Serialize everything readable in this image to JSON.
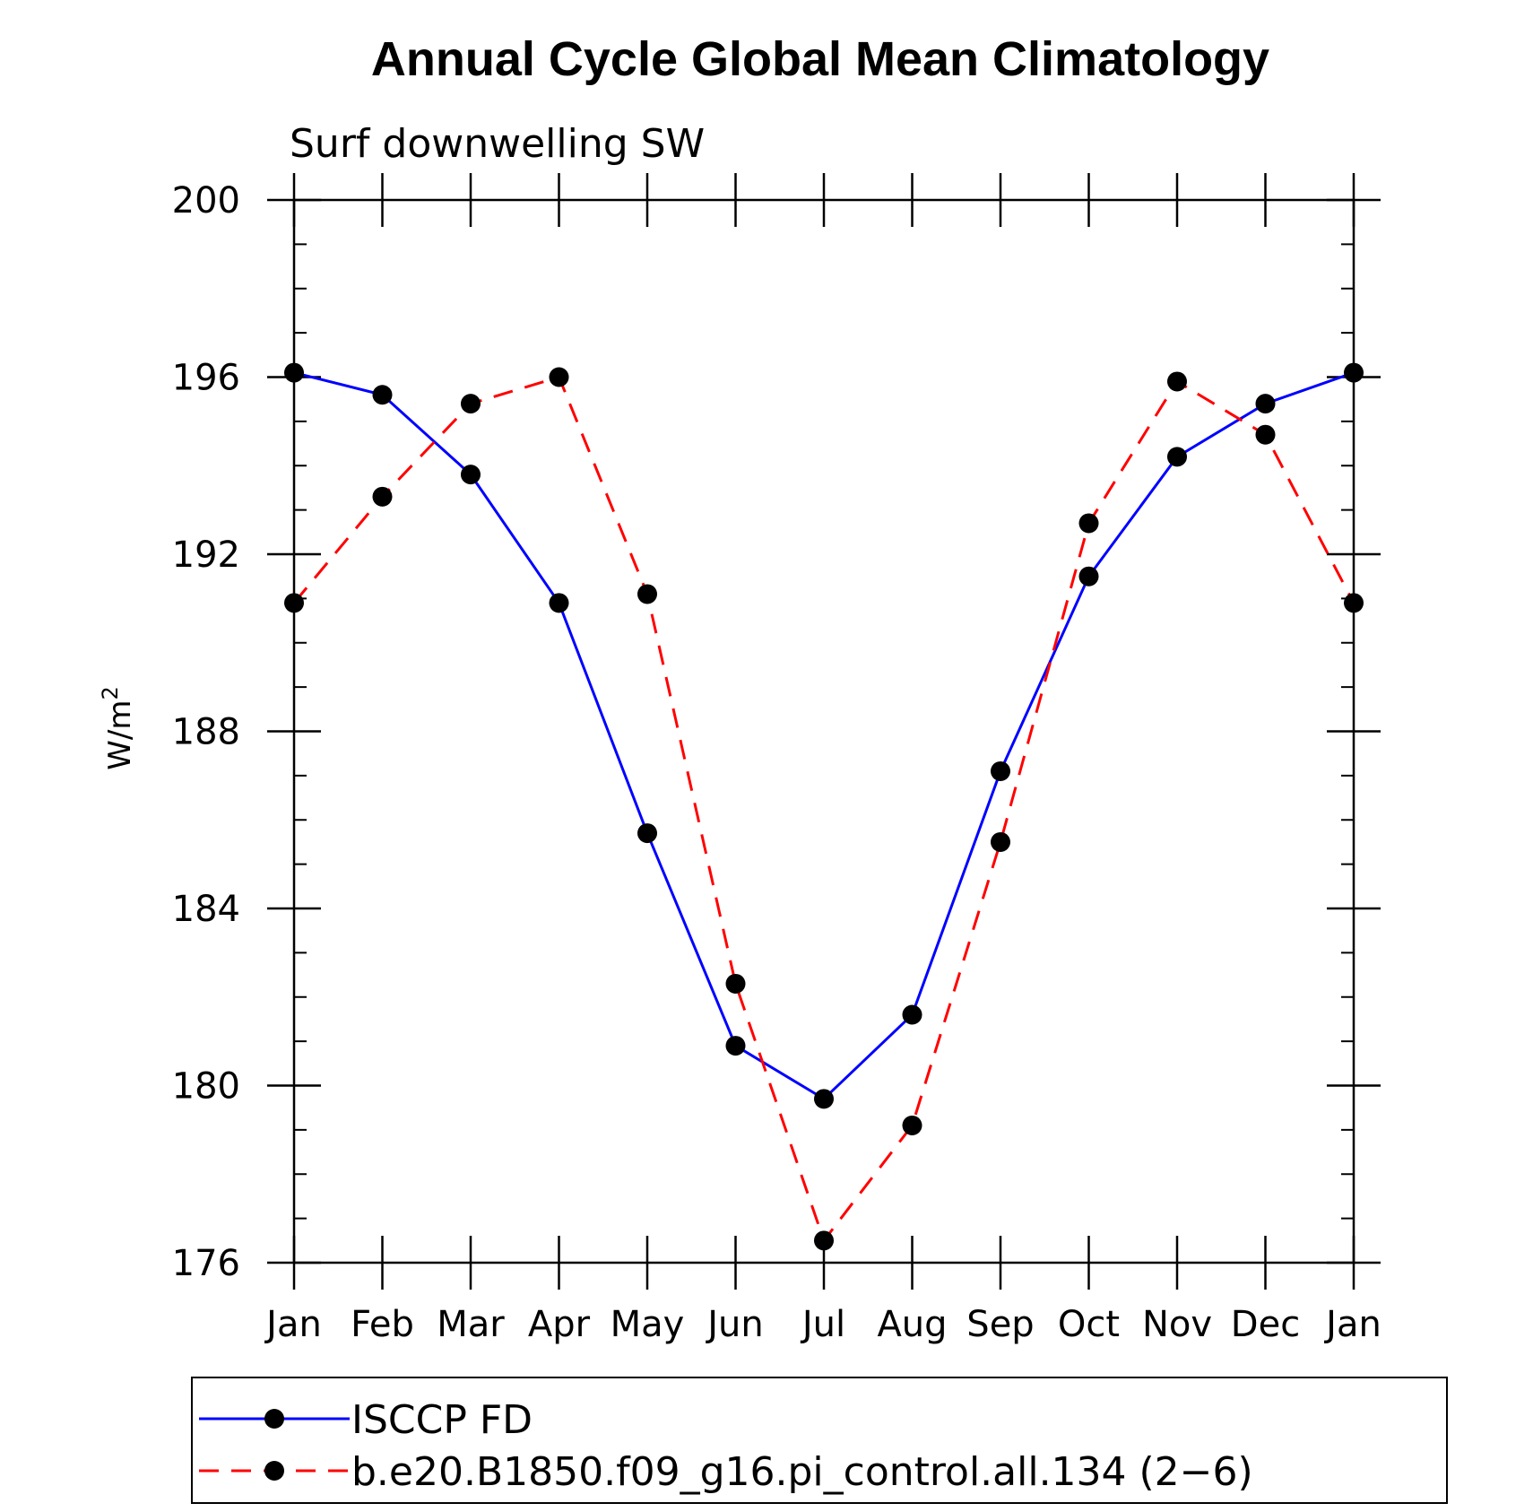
{
  "chart_data": {
    "type": "line",
    "title": "Annual Cycle Global Mean Climatology",
    "subtitle": "Surf downwelling SW",
    "ylabel": "W/m",
    "ylabel_sup": "2",
    "xlabel": "",
    "categories": [
      "Jan",
      "Feb",
      "Mar",
      "Apr",
      "May",
      "Jun",
      "Jul",
      "Aug",
      "Sep",
      "Oct",
      "Nov",
      "Dec",
      "Jan"
    ],
    "ylim": [
      176,
      200
    ],
    "yticks": [
      176,
      180,
      184,
      188,
      192,
      196,
      200
    ],
    "yminor_step": 1,
    "grid": false,
    "legend_position": "bottom",
    "series": [
      {
        "name": "ISCCP FD",
        "color": "#0000ff",
        "style": "solid",
        "marker": "circle",
        "values": [
          196.1,
          195.6,
          193.8,
          190.9,
          185.7,
          180.9,
          179.7,
          181.6,
          187.1,
          191.5,
          194.2,
          195.4,
          196.1
        ]
      },
      {
        "name": "b.e20.B1850.f09_g16.pi_control.all.134 (2−6)",
        "color": "#ff0000",
        "style": "dashed",
        "marker": "circle",
        "values": [
          190.9,
          193.3,
          195.4,
          196.0,
          191.1,
          182.3,
          176.5,
          179.1,
          185.5,
          192.7,
          195.9,
          194.7,
          190.9
        ]
      }
    ]
  }
}
